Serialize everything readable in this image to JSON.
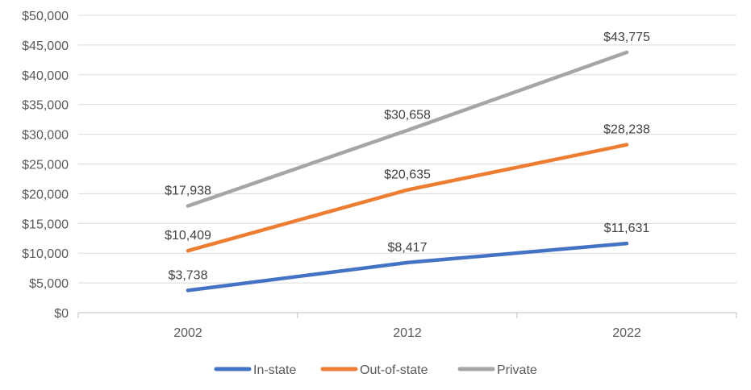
{
  "chart_data": {
    "type": "line",
    "title": "",
    "xlabel": "",
    "ylabel": "",
    "categories": [
      "2002",
      "2012",
      "2022"
    ],
    "ylim": [
      0,
      50000
    ],
    "ytick_step": 5000,
    "ytick_labels": [
      "$0",
      "$5,000",
      "$10,000",
      "$15,000",
      "$20,000",
      "$25,000",
      "$30,000",
      "$35,000",
      "$40,000",
      "$45,000",
      "$50,000"
    ],
    "grid": true,
    "legend_position": "bottom",
    "series": [
      {
        "name": "In-state",
        "color": "#4472C4",
        "values": [
          3738,
          8417,
          11631
        ],
        "labels": [
          "$3,738",
          "$8,417",
          "$11,631"
        ]
      },
      {
        "name": "Out-of-state",
        "color": "#ED7D31",
        "values": [
          10409,
          20635,
          28238
        ],
        "labels": [
          "$10,409",
          "$20,635",
          "$28,238"
        ]
      },
      {
        "name": "Private",
        "color": "#A5A5A5",
        "values": [
          17938,
          30658,
          43775
        ],
        "labels": [
          "$17,938",
          "$30,658",
          "$43,775"
        ]
      }
    ]
  }
}
